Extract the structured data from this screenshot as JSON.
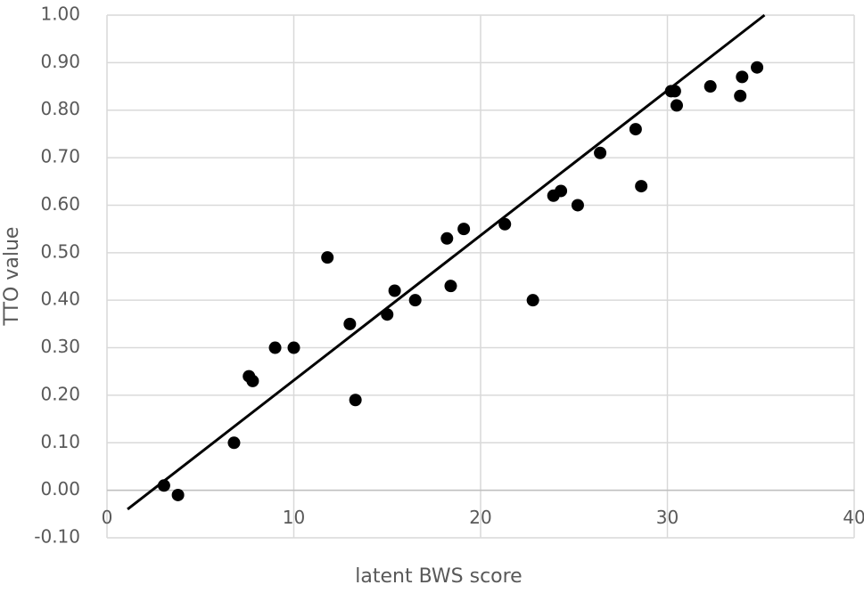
{
  "chart_data": {
    "type": "scatter",
    "x_label": "latent BWS score",
    "y_label": "TTO value",
    "xlim": [
      0,
      40
    ],
    "ylim": [
      -0.1,
      1.0
    ],
    "xticks": [
      0,
      10,
      20,
      30,
      40
    ],
    "yticks": [
      {
        "value": 1.0,
        "label": "1.00"
      },
      {
        "value": 0.9,
        "label": "0.90"
      },
      {
        "value": 0.8,
        "label": "0.80"
      },
      {
        "value": 0.7,
        "label": "0.70"
      },
      {
        "value": 0.6,
        "label": "0.60"
      },
      {
        "value": 0.5,
        "label": "0.50"
      },
      {
        "value": 0.4,
        "label": "0.40"
      },
      {
        "value": 0.3,
        "label": "0.30"
      },
      {
        "value": 0.2,
        "label": "0.20"
      },
      {
        "value": 0.1,
        "label": "0.10"
      },
      {
        "value": 0.0,
        "label": "0.00"
      },
      {
        "value": -0.1,
        "label": "-0.10"
      }
    ],
    "grid": true,
    "color": "#000000",
    "x": [
      3.05,
      3.8,
      6.8,
      7.6,
      7.8,
      9.0,
      10.0,
      11.8,
      13.0,
      13.3,
      15.0,
      15.4,
      16.5,
      18.2,
      18.4,
      19.1,
      21.3,
      22.8,
      23.9,
      24.3,
      25.2,
      26.4,
      28.3,
      28.6,
      30.2,
      30.4,
      30.5,
      32.3,
      33.9,
      34.0,
      34.8
    ],
    "values": [
      0.01,
      -0.01,
      0.1,
      0.24,
      0.23,
      0.3,
      0.3,
      0.49,
      0.35,
      0.19,
      0.37,
      0.42,
      0.4,
      0.53,
      0.43,
      0.55,
      0.56,
      0.4,
      0.62,
      0.63,
      0.6,
      0.71,
      0.76,
      0.64,
      0.84,
      0.84,
      0.81,
      0.85,
      0.83,
      0.87,
      0.89
    ],
    "trendline": {
      "x": [
        1.1,
        35.2
      ],
      "y": [
        -0.04,
        1.0
      ],
      "color": "#000000"
    }
  }
}
